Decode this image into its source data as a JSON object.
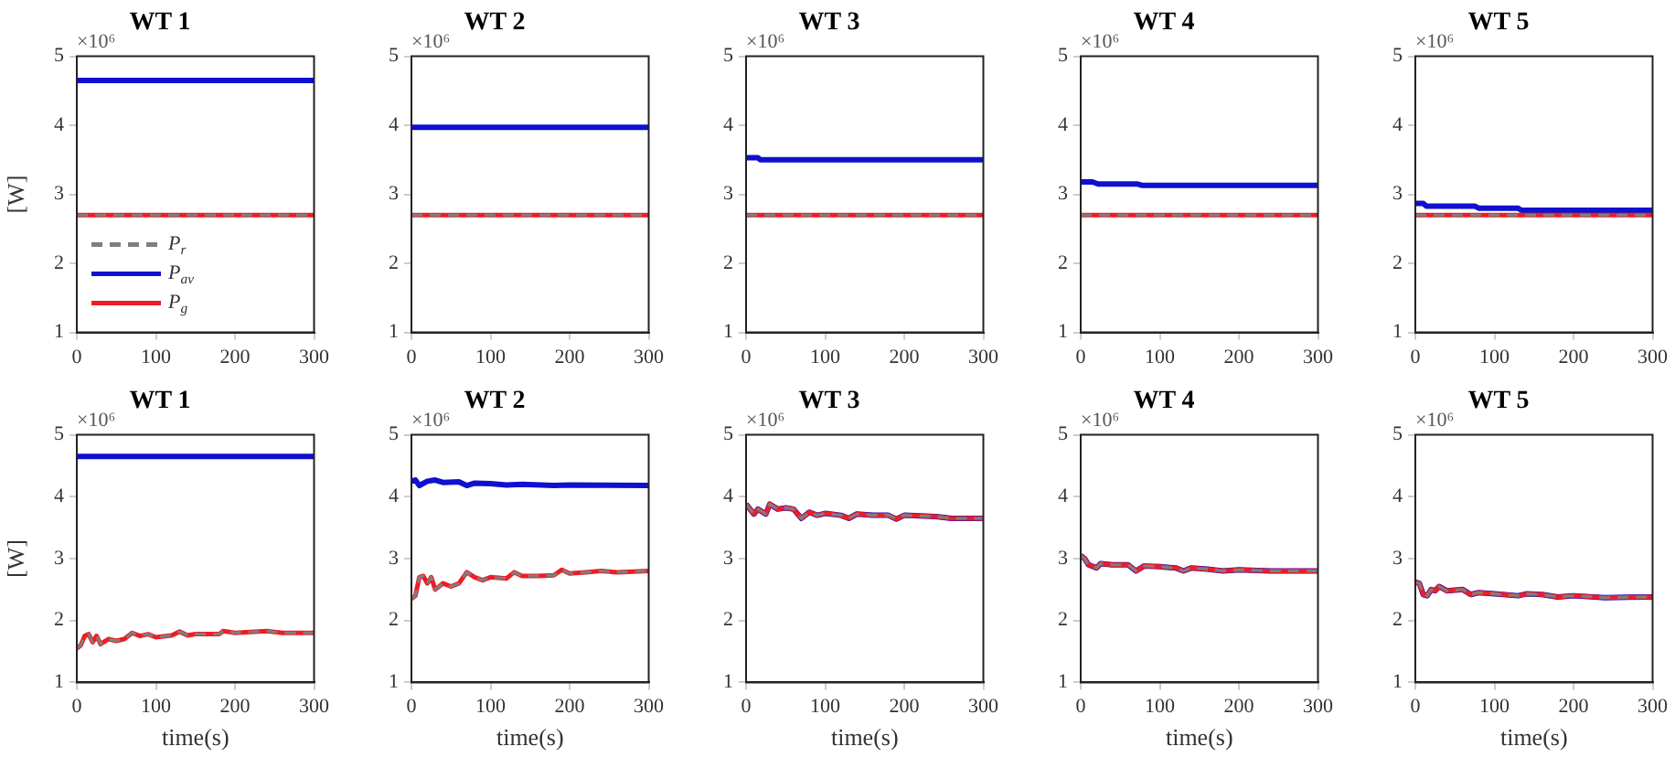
{
  "chart_data": [
    {
      "type": "line",
      "title": "WT 1",
      "ylabel": "[W]",
      "annotations": [
        "×10⁶"
      ],
      "xlim": [
        0,
        300
      ],
      "xticks": [
        0,
        100,
        200,
        300
      ],
      "ylim": [
        1,
        5
      ],
      "yticks": [
        1,
        2,
        3,
        4,
        5
      ],
      "legend": "bottom left",
      "series": [
        {
          "name": "P$_{r}$",
          "color": "#7f7f7f",
          "line_style": "dashed",
          "x": [
            0,
            300
          ],
          "values": [
            2.7,
            2.7
          ]
        },
        {
          "name": "P$_{av}$",
          "color": "#1010d0",
          "x": [
            0,
            300
          ],
          "values": [
            4.65,
            4.65
          ]
        },
        {
          "name": "P$_{g}$",
          "color": "#ee1c24",
          "x": [
            0,
            300
          ],
          "values": [
            2.7,
            2.7
          ]
        }
      ]
    },
    {
      "type": "line",
      "title": "WT 2",
      "annotations": [
        "×10⁶"
      ],
      "xlim": [
        0,
        300
      ],
      "xticks": [
        0,
        100,
        200,
        300
      ],
      "ylim": [
        1,
        5
      ],
      "yticks": [
        1,
        2,
        3,
        4,
        5
      ],
      "series": [
        {
          "color": "#7f7f7f",
          "line_style": "dashed",
          "x": [
            0,
            300
          ],
          "values": [
            2.7,
            2.7
          ]
        },
        {
          "color": "#1010d0",
          "x": [
            0,
            300
          ],
          "values": [
            3.97,
            3.97
          ]
        },
        {
          "color": "#ee1c24",
          "x": [
            0,
            300
          ],
          "values": [
            2.7,
            2.7
          ]
        }
      ]
    },
    {
      "type": "line",
      "title": "WT 3",
      "annotations": [
        "×10⁶"
      ],
      "xlim": [
        0,
        300
      ],
      "xticks": [
        0,
        100,
        200,
        300
      ],
      "ylim": [
        1,
        5
      ],
      "yticks": [
        1,
        2,
        3,
        4,
        5
      ],
      "series": [
        {
          "color": "#7f7f7f",
          "line_style": "dashed",
          "x": [
            0,
            300
          ],
          "values": [
            2.7,
            2.7
          ]
        },
        {
          "color": "#1010d0",
          "x": [
            0,
            15,
            18,
            300
          ],
          "values": [
            3.53,
            3.53,
            3.5,
            3.5
          ]
        },
        {
          "color": "#ee1c24",
          "x": [
            0,
            300
          ],
          "values": [
            2.7,
            2.7
          ]
        }
      ]
    },
    {
      "type": "line",
      "title": "WT 4",
      "annotations": [
        "×10⁶"
      ],
      "xlim": [
        0,
        300
      ],
      "xticks": [
        0,
        100,
        200,
        300
      ],
      "ylim": [
        1,
        5
      ],
      "yticks": [
        1,
        2,
        3,
        4,
        5
      ],
      "series": [
        {
          "color": "#7f7f7f",
          "line_style": "dashed",
          "x": [
            0,
            300
          ],
          "values": [
            2.7,
            2.7
          ]
        },
        {
          "color": "#1010d0",
          "x": [
            0,
            15,
            22,
            72,
            78,
            300
          ],
          "values": [
            3.18,
            3.18,
            3.15,
            3.15,
            3.13,
            3.13
          ]
        },
        {
          "color": "#ee1c24",
          "x": [
            0,
            300
          ],
          "values": [
            2.7,
            2.7
          ]
        }
      ]
    },
    {
      "type": "line",
      "title": "WT 5",
      "annotations": [
        "×10⁶"
      ],
      "xlim": [
        0,
        300
      ],
      "xticks": [
        0,
        100,
        200,
        300
      ],
      "ylim": [
        1,
        5
      ],
      "yticks": [
        1,
        2,
        3,
        4,
        5
      ],
      "series": [
        {
          "color": "#7f7f7f",
          "line_style": "dashed",
          "x": [
            0,
            300
          ],
          "values": [
            2.7,
            2.7
          ]
        },
        {
          "color": "#1010d0",
          "x": [
            0,
            10,
            14,
            75,
            80,
            130,
            134,
            300
          ],
          "values": [
            2.87,
            2.87,
            2.83,
            2.83,
            2.8,
            2.8,
            2.77,
            2.77
          ]
        },
        {
          "color": "#ee1c24",
          "x": [
            0,
            300
          ],
          "values": [
            2.7,
            2.7
          ]
        }
      ]
    },
    {
      "type": "line",
      "title": "WT 1",
      "xlabel": "time(s)",
      "ylabel": "[W]",
      "annotations": [
        "×10⁶"
      ],
      "xlim": [
        0,
        300
      ],
      "xticks": [
        0,
        100,
        200,
        300
      ],
      "ylim": [
        1,
        5
      ],
      "yticks": [
        1,
        2,
        3,
        4,
        5
      ],
      "series": [
        {
          "color": "#7f7f7f",
          "line_style": "dashed",
          "x": [
            0,
            5,
            10,
            15,
            20,
            25,
            30,
            40,
            50,
            60,
            70,
            80,
            90,
            100,
            120,
            130,
            140,
            150,
            180,
            185,
            200,
            240,
            260,
            300
          ],
          "values": [
            1.55,
            1.6,
            1.75,
            1.78,
            1.65,
            1.75,
            1.62,
            1.7,
            1.67,
            1.7,
            1.8,
            1.75,
            1.78,
            1.73,
            1.76,
            1.82,
            1.76,
            1.78,
            1.78,
            1.83,
            1.8,
            1.83,
            1.8,
            1.8
          ]
        },
        {
          "color": "#1010d0",
          "x": [
            0,
            300
          ],
          "values": [
            4.65,
            4.65
          ]
        },
        {
          "color": "#ee1c24",
          "x": [
            0,
            5,
            10,
            15,
            20,
            25,
            30,
            40,
            50,
            60,
            70,
            80,
            90,
            100,
            120,
            130,
            140,
            150,
            180,
            185,
            200,
            240,
            260,
            300
          ],
          "values": [
            1.55,
            1.6,
            1.75,
            1.78,
            1.65,
            1.75,
            1.62,
            1.7,
            1.67,
            1.7,
            1.8,
            1.75,
            1.78,
            1.73,
            1.76,
            1.82,
            1.76,
            1.78,
            1.78,
            1.83,
            1.8,
            1.83,
            1.8,
            1.8
          ]
        }
      ]
    },
    {
      "type": "line",
      "title": "WT 2",
      "xlabel": "time(s)",
      "annotations": [
        "×10⁶"
      ],
      "xlim": [
        0,
        300
      ],
      "xticks": [
        0,
        100,
        200,
        300
      ],
      "ylim": [
        1,
        5
      ],
      "yticks": [
        1,
        2,
        3,
        4,
        5
      ],
      "series": [
        {
          "color": "#7f7f7f",
          "line_style": "dashed",
          "x": [
            0,
            5,
            10,
            15,
            20,
            25,
            30,
            40,
            50,
            60,
            70,
            80,
            90,
            100,
            120,
            130,
            140,
            160,
            180,
            190,
            200,
            220,
            240,
            260,
            300
          ],
          "values": [
            2.35,
            2.4,
            2.7,
            2.72,
            2.6,
            2.7,
            2.5,
            2.6,
            2.55,
            2.6,
            2.78,
            2.7,
            2.65,
            2.7,
            2.68,
            2.78,
            2.72,
            2.72,
            2.73,
            2.82,
            2.76,
            2.78,
            2.8,
            2.78,
            2.8
          ]
        },
        {
          "color": "#1010d0",
          "x": [
            0,
            5,
            10,
            20,
            30,
            40,
            60,
            70,
            80,
            100,
            120,
            140,
            180,
            200,
            300
          ],
          "values": [
            4.25,
            4.27,
            4.18,
            4.25,
            4.27,
            4.23,
            4.24,
            4.18,
            4.22,
            4.21,
            4.19,
            4.2,
            4.18,
            4.19,
            4.18
          ]
        },
        {
          "color": "#ee1c24",
          "x": [
            0,
            5,
            10,
            15,
            20,
            25,
            30,
            40,
            50,
            60,
            70,
            80,
            90,
            100,
            120,
            130,
            140,
            160,
            180,
            190,
            200,
            220,
            240,
            260,
            300
          ],
          "values": [
            2.35,
            2.4,
            2.7,
            2.72,
            2.6,
            2.7,
            2.5,
            2.6,
            2.55,
            2.6,
            2.78,
            2.7,
            2.65,
            2.7,
            2.68,
            2.78,
            2.72,
            2.72,
            2.73,
            2.82,
            2.76,
            2.78,
            2.8,
            2.78,
            2.8
          ]
        }
      ]
    },
    {
      "type": "line",
      "title": "WT 3",
      "xlabel": "time(s)",
      "annotations": [
        "×10⁶"
      ],
      "xlim": [
        0,
        300
      ],
      "xticks": [
        0,
        100,
        200,
        300
      ],
      "ylim": [
        1,
        5
      ],
      "yticks": [
        1,
        2,
        3,
        4,
        5
      ],
      "series": [
        {
          "color": "#7f7f7f",
          "line_style": "dashed",
          "x": [
            0,
            5,
            10,
            15,
            25,
            30,
            40,
            50,
            60,
            70,
            80,
            90,
            100,
            120,
            130,
            140,
            160,
            180,
            190,
            200,
            240,
            260,
            300
          ],
          "values": [
            3.88,
            3.8,
            3.72,
            3.8,
            3.72,
            3.88,
            3.8,
            3.82,
            3.8,
            3.65,
            3.75,
            3.7,
            3.73,
            3.7,
            3.65,
            3.72,
            3.7,
            3.7,
            3.64,
            3.7,
            3.68,
            3.65,
            3.65
          ]
        },
        {
          "color": "#1010d0",
          "x": [
            0,
            5,
            10,
            15,
            25,
            30,
            40,
            50,
            60,
            70,
            80,
            90,
            100,
            120,
            130,
            140,
            160,
            180,
            190,
            200,
            240,
            260,
            300
          ],
          "values": [
            3.88,
            3.8,
            3.72,
            3.8,
            3.72,
            3.88,
            3.8,
            3.82,
            3.8,
            3.65,
            3.75,
            3.7,
            3.73,
            3.7,
            3.65,
            3.72,
            3.7,
            3.7,
            3.64,
            3.7,
            3.68,
            3.65,
            3.65
          ]
        },
        {
          "color": "#ee1c24",
          "x": [
            0,
            5,
            10,
            15,
            25,
            30,
            40,
            50,
            60,
            70,
            80,
            90,
            100,
            120,
            130,
            140,
            160,
            180,
            190,
            200,
            240,
            260,
            300
          ],
          "values": [
            3.88,
            3.8,
            3.72,
            3.8,
            3.72,
            3.88,
            3.8,
            3.82,
            3.8,
            3.65,
            3.75,
            3.7,
            3.73,
            3.7,
            3.65,
            3.72,
            3.7,
            3.7,
            3.64,
            3.7,
            3.68,
            3.65,
            3.65
          ]
        }
      ]
    },
    {
      "type": "line",
      "title": "WT 4",
      "xlabel": "time(s)",
      "annotations": [
        "×10⁶"
      ],
      "xlim": [
        0,
        300
      ],
      "xticks": [
        0,
        100,
        200,
        300
      ],
      "ylim": [
        1,
        5
      ],
      "yticks": [
        1,
        2,
        3,
        4,
        5
      ],
      "series": [
        {
          "color": "#7f7f7f",
          "line_style": "dashed",
          "x": [
            0,
            5,
            10,
            20,
            25,
            40,
            60,
            70,
            80,
            100,
            120,
            130,
            140,
            160,
            180,
            200,
            240,
            300
          ],
          "values": [
            3.05,
            3.0,
            2.9,
            2.85,
            2.92,
            2.9,
            2.9,
            2.8,
            2.88,
            2.87,
            2.85,
            2.8,
            2.85,
            2.83,
            2.8,
            2.82,
            2.8,
            2.8
          ]
        },
        {
          "color": "#1010d0",
          "x": [
            0,
            5,
            10,
            20,
            25,
            40,
            60,
            70,
            80,
            100,
            120,
            130,
            140,
            160,
            180,
            200,
            240,
            300
          ],
          "values": [
            3.05,
            3.0,
            2.9,
            2.85,
            2.92,
            2.9,
            2.9,
            2.8,
            2.88,
            2.87,
            2.85,
            2.8,
            2.85,
            2.83,
            2.8,
            2.82,
            2.8,
            2.8
          ]
        },
        {
          "color": "#ee1c24",
          "x": [
            0,
            5,
            10,
            20,
            25,
            40,
            60,
            70,
            80,
            100,
            120,
            130,
            140,
            160,
            180,
            200,
            240,
            300
          ],
          "values": [
            3.05,
            3.0,
            2.9,
            2.85,
            2.92,
            2.9,
            2.9,
            2.8,
            2.88,
            2.87,
            2.85,
            2.8,
            2.85,
            2.83,
            2.8,
            2.82,
            2.8,
            2.8
          ]
        }
      ]
    },
    {
      "type": "line",
      "title": "WT 5",
      "xlabel": "time(s)",
      "annotations": [
        "×10⁶"
      ],
      "xlim": [
        0,
        300
      ],
      "xticks": [
        0,
        100,
        200,
        300
      ],
      "ylim": [
        1,
        5
      ],
      "yticks": [
        1,
        2,
        3,
        4,
        5
      ],
      "series": [
        {
          "color": "#7f7f7f",
          "line_style": "dashed",
          "x": [
            0,
            5,
            10,
            15,
            20,
            25,
            30,
            40,
            60,
            70,
            80,
            100,
            130,
            140,
            160,
            180,
            200,
            240,
            300
          ],
          "values": [
            2.62,
            2.6,
            2.42,
            2.4,
            2.5,
            2.48,
            2.55,
            2.48,
            2.5,
            2.42,
            2.45,
            2.43,
            2.4,
            2.43,
            2.42,
            2.38,
            2.4,
            2.37,
            2.38
          ]
        },
        {
          "color": "#1010d0",
          "x": [
            0,
            5,
            10,
            15,
            20,
            25,
            30,
            40,
            60,
            70,
            80,
            100,
            130,
            140,
            160,
            180,
            200,
            240,
            300
          ],
          "values": [
            2.62,
            2.6,
            2.42,
            2.4,
            2.5,
            2.48,
            2.55,
            2.48,
            2.5,
            2.42,
            2.45,
            2.43,
            2.4,
            2.43,
            2.42,
            2.38,
            2.4,
            2.37,
            2.38
          ]
        },
        {
          "color": "#ee1c24",
          "x": [
            0,
            5,
            10,
            15,
            20,
            25,
            30,
            40,
            60,
            70,
            80,
            100,
            130,
            140,
            160,
            180,
            200,
            240,
            300
          ],
          "values": [
            2.62,
            2.6,
            2.42,
            2.4,
            2.5,
            2.48,
            2.55,
            2.48,
            2.5,
            2.42,
            2.45,
            2.43,
            2.4,
            2.43,
            2.42,
            2.38,
            2.4,
            2.37,
            2.38
          ]
        }
      ]
    }
  ]
}
